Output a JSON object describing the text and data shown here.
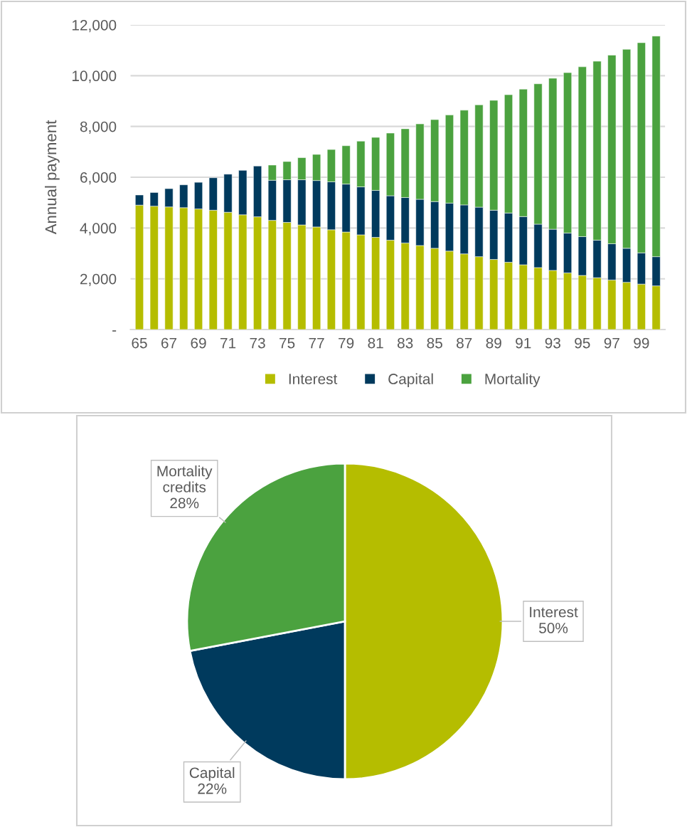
{
  "chart_data": [
    {
      "type": "bar",
      "stacked": true,
      "ylabel": "Annual payment",
      "categories": [
        "65",
        null,
        "67",
        null,
        "69",
        null,
        "71",
        null,
        "73",
        null,
        "75",
        null,
        "77",
        null,
        "79",
        null,
        "81",
        null,
        "83",
        null,
        "85",
        null,
        "87",
        null,
        "89",
        null,
        "91",
        null,
        "93",
        null,
        "95",
        null,
        "97",
        null,
        "99",
        null
      ],
      "series": [
        {
          "name": "Interest",
          "color": "#b5bd00",
          "values": [
            4900,
            4860,
            4830,
            4800,
            4750,
            4700,
            4620,
            4520,
            4440,
            4300,
            4220,
            4120,
            4040,
            3930,
            3840,
            3730,
            3630,
            3520,
            3410,
            3310,
            3200,
            3090,
            2980,
            2870,
            2760,
            2650,
            2550,
            2440,
            2330,
            2230,
            2130,
            2040,
            1950,
            1860,
            1790,
            1720
          ]
        },
        {
          "name": "Capital",
          "color": "#003a5d",
          "values": [
            400,
            540,
            720,
            900,
            1050,
            1280,
            1500,
            1750,
            2000,
            1580,
            1680,
            1780,
            1830,
            1890,
            1890,
            1890,
            1850,
            1750,
            1790,
            1820,
            1840,
            1890,
            1930,
            1950,
            1940,
            1940,
            1900,
            1710,
            1620,
            1570,
            1530,
            1480,
            1430,
            1340,
            1230,
            1150
          ]
        },
        {
          "name": "Mortality",
          "color": "#4ba23f",
          "values": [
            null,
            null,
            null,
            null,
            null,
            null,
            null,
            null,
            null,
            600,
            720,
            870,
            1030,
            1270,
            1510,
            1800,
            2090,
            2470,
            2710,
            2970,
            3230,
            3470,
            3730,
            4030,
            4330,
            4660,
            5020,
            5530,
            5950,
            6320,
            6690,
            7050,
            7430,
            7840,
            8280,
            8690
          ]
        }
      ],
      "ylim": [
        0,
        12000
      ],
      "yticks": [
        {
          "value": 0,
          "label": "-"
        },
        {
          "value": 2000,
          "label": "2,000"
        },
        {
          "value": 4000,
          "label": "4,000"
        },
        {
          "value": 6000,
          "label": "6,000"
        },
        {
          "value": 8000,
          "label": "8,000"
        },
        {
          "value": 10000,
          "label": "10,000"
        },
        {
          "value": 12000,
          "label": "12,000"
        }
      ],
      "grid": "y",
      "legend": "bottom"
    },
    {
      "type": "pie",
      "categories": [
        "Interest",
        "Capital",
        "Mortality credits"
      ],
      "values": [
        50,
        22,
        28
      ],
      "colors": [
        "#b5bd00",
        "#003a5d",
        "#4ba23f"
      ],
      "value_labels": [
        "50%",
        "22%",
        "28%"
      ]
    }
  ]
}
